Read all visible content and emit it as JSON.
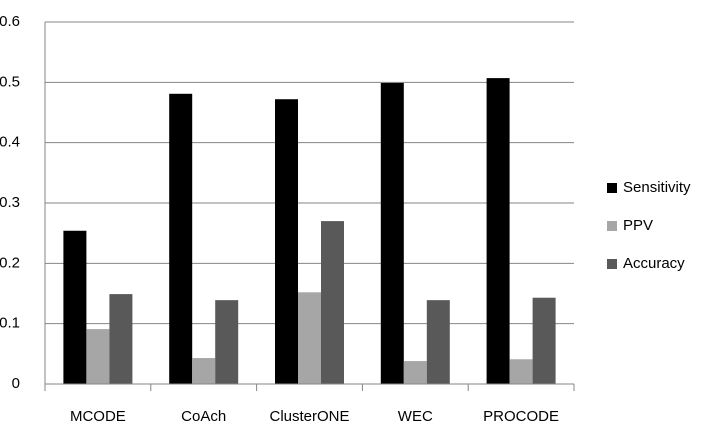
{
  "chart_data": {
    "type": "bar",
    "categories": [
      "MCODE",
      "CoAch",
      "ClusterONE",
      "WEC",
      "PROCODE"
    ],
    "series": [
      {
        "name": "Sensitivity",
        "color": "#000000",
        "values": [
          0.254,
          0.481,
          0.472,
          0.499,
          0.507
        ]
      },
      {
        "name": "PPV",
        "color": "#a6a6a6",
        "values": [
          0.091,
          0.043,
          0.152,
          0.038,
          0.041
        ]
      },
      {
        "name": "Accuracy",
        "color": "#595959",
        "values": [
          0.149,
          0.139,
          0.27,
          0.139,
          0.143
        ]
      }
    ],
    "ylim": [
      0,
      0.6
    ],
    "yticks": [
      0,
      0.1,
      0.2,
      0.3,
      0.4,
      0.5,
      0.6
    ],
    "grid": true,
    "legend": "right"
  }
}
